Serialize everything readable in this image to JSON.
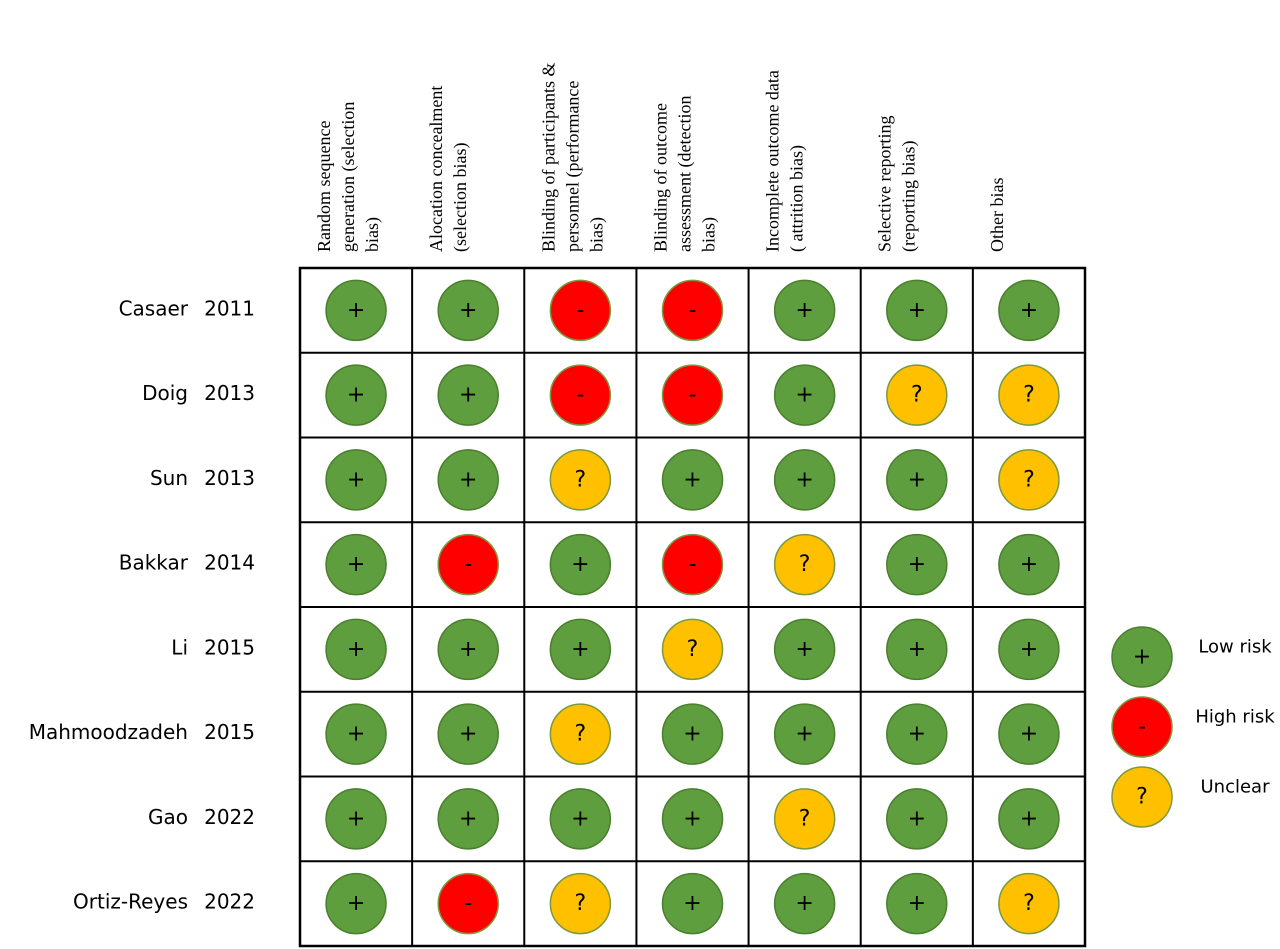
{
  "columns": [
    [
      "Random sequence",
      "generation (selection",
      "bias)"
    ],
    [
      "Alocation concealment",
      "(selection bias)"
    ],
    [
      "Blinding of participants &",
      "personnel (performance",
      "bias)"
    ],
    [
      "Blinding of outcome",
      "assessment (detection",
      "bias)"
    ],
    [
      "Incomplete outcome data",
      "( attrition bias)"
    ],
    [
      "Selective reporting",
      "(reporting bias)"
    ],
    [
      "Other bias"
    ]
  ],
  "rows": [
    {
      "study": "Casaer",
      "year": "2011",
      "cells": [
        "+",
        "+",
        "-",
        "-",
        "+",
        "+",
        "+"
      ]
    },
    {
      "study": "Doig",
      "year": "2013",
      "cells": [
        "+",
        "+",
        "-",
        "-",
        "+",
        "?",
        "?"
      ]
    },
    {
      "study": "Sun",
      "year": "2013",
      "cells": [
        "+",
        "+",
        "?",
        "+",
        "+",
        "+",
        "?"
      ]
    },
    {
      "study": "Bakkar",
      "year": "2014",
      "cells": [
        "+",
        "-",
        "+",
        "-",
        "?",
        "+",
        "+"
      ]
    },
    {
      "study": "Li",
      "year": "2015",
      "cells": [
        "+",
        "+",
        "+",
        "?",
        "+",
        "+",
        "+"
      ]
    },
    {
      "study": "Mahmoodzadeh",
      "year": "2015",
      "cells": [
        "+",
        "+",
        "?",
        "+",
        "+",
        "+",
        "+"
      ]
    },
    {
      "study": "Gao",
      "year": "2022",
      "cells": [
        "+",
        "+",
        "+",
        "+",
        "?",
        "+",
        "+"
      ]
    },
    {
      "study": "Ortiz-Reyes",
      "year": "2022",
      "cells": [
        "+",
        "-",
        "?",
        "+",
        "+",
        "+",
        "?"
      ]
    }
  ],
  "legend": [
    {
      "symbol": "+",
      "label": "Low risk",
      "color": "#5f9e3e"
    },
    {
      "symbol": "-",
      "label": "High risk",
      "color": "#ff0000"
    },
    {
      "symbol": "?",
      "label": "Unclear",
      "color": "#ffc000"
    }
  ]
}
